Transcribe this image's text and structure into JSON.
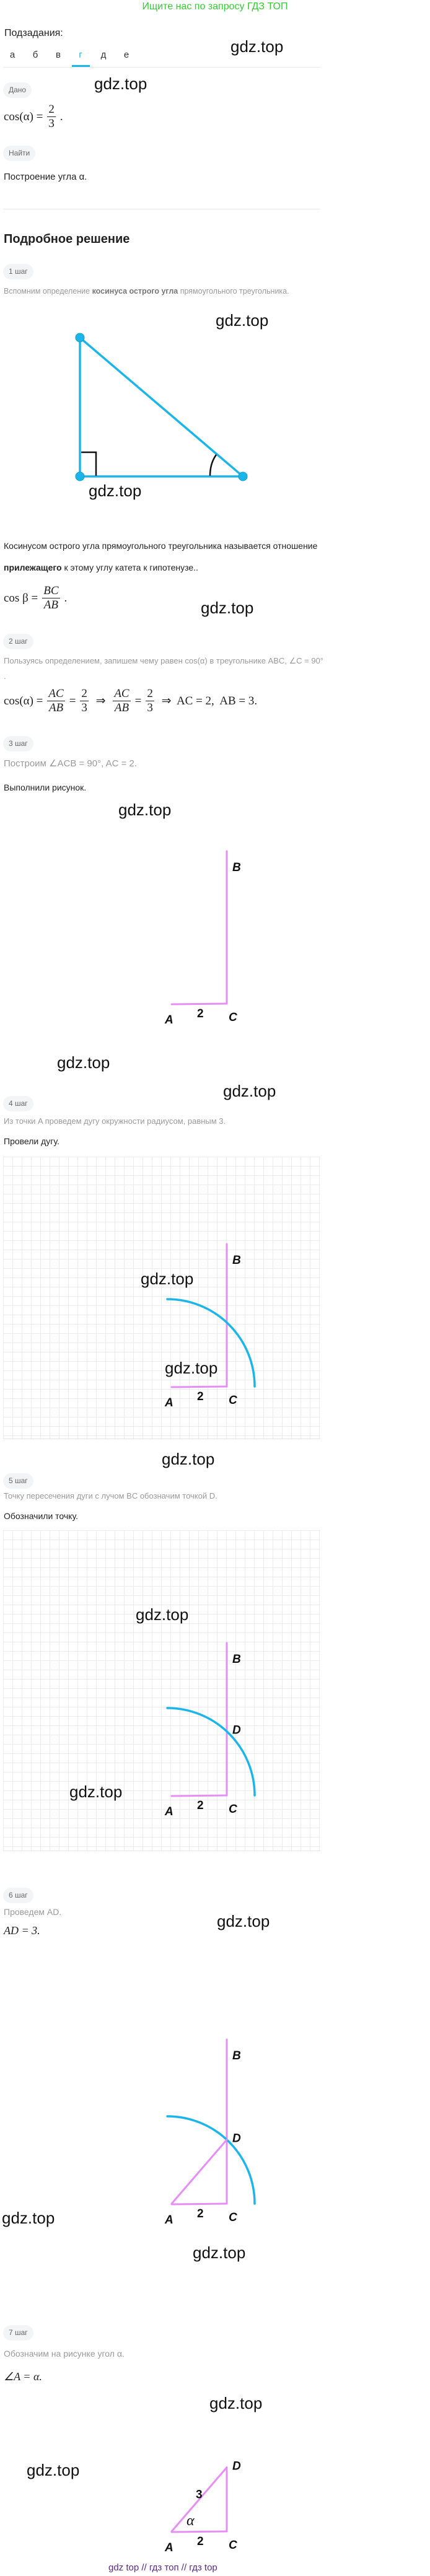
{
  "banner": "Ищите нас по запросу ГДЗ ТОП",
  "subtasks": {
    "label": "Подзадания:",
    "tabs": [
      "а",
      "б",
      "в",
      "г",
      "д",
      "е"
    ],
    "active": "г"
  },
  "watermark": "gdz.top",
  "given": {
    "badge": "Дано",
    "formula": [
      {
        "t": "cos(α) ="
      },
      {
        "num": "2",
        "den": "3"
      },
      {
        "t": "."
      }
    ]
  },
  "find": {
    "badge": "Найти",
    "text": "Построение угла α."
  },
  "solution_title": "Подробное решение",
  "steps": [
    {
      "badge": "1 шаг",
      "text_parts": [
        {
          "t": "Вспомним определение "
        },
        {
          "b": "косинуса острого угла"
        },
        {
          "t": " прямоугольного треугольника."
        }
      ],
      "def_line1": "Косинусом острого угла прямоугольного треугольника называется отношение",
      "def_line2_bold": "прилежащего",
      "def_line2_rest": " к этому углу катета к гипотенузе..",
      "formula": [
        {
          "t": "cos β ="
        },
        {
          "num": "BC",
          "den": "AB"
        },
        {
          "t": "."
        }
      ]
    },
    {
      "badge": "2 шаг",
      "text": "Пользуясь определением, запишем чему равен cos(α) в треугольнике ABC, ∠C = 90°",
      "dot": ".",
      "formula": [
        {
          "t": "cos(α) ="
        },
        {
          "num": "AC",
          "den": "AB"
        },
        {
          "t": "="
        },
        {
          "num": "2",
          "den": "3"
        },
        {
          "t": " ⇒ "
        },
        {
          "num": "AC",
          "den": "AB"
        },
        {
          "t": "="
        },
        {
          "num": "2",
          "den": "3"
        },
        {
          "t": " ⇒  AC = 2,  AB = 3."
        }
      ]
    },
    {
      "badge": "3 шаг",
      "text": "Построим ∠ACB = 90°,  AC = 2.",
      "result": "Выполнили рисунок."
    },
    {
      "badge": "4 шаг",
      "text": "Из точки A проведем дугу окружности радиусом, равным 3.",
      "result": "Провели дугу."
    },
    {
      "badge": "5 шаг",
      "text": "Точку пересечения дуги с лучом BC обозначим точкой D.",
      "result": "Обозначили точку."
    },
    {
      "badge": "6 шаг",
      "text": "Проведем AD.",
      "result": "AD = 3."
    },
    {
      "badge": "7 шаг",
      "text": "Обозначим на рисунке угол α.",
      "result": "∠A = α."
    }
  ],
  "figure_labels": {
    "A": "A",
    "B": "B",
    "C": "C",
    "D": "D",
    "ac": "2",
    "ad": "3",
    "alpha": "α"
  },
  "colors": {
    "accent": "#1cb5ea",
    "construction": "#e58ff5",
    "banner": "#33cc33",
    "footer": "#5a2a8a"
  },
  "footer": "gdz top  //  гдз топ  //  гдз top"
}
